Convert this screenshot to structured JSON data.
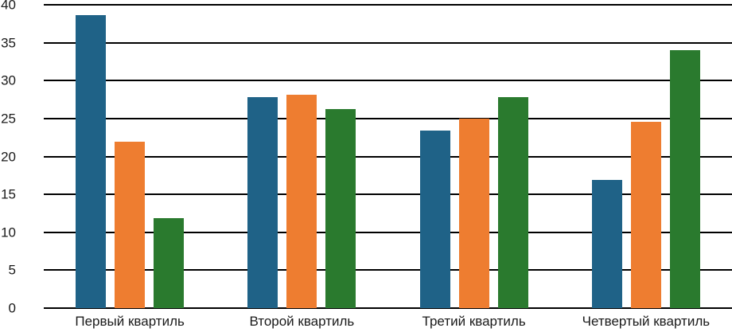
{
  "chart_data": {
    "type": "bar",
    "title": "",
    "xlabel": "",
    "ylabel": "",
    "categories": [
      "Первый квартиль",
      "Второй квартиль",
      "Третий квартиль",
      "Четвертый квартиль"
    ],
    "series": [
      {
        "color": "#1f6287",
        "values": [
          38.6,
          27.8,
          23.4,
          16.9
        ]
      },
      {
        "color": "#ee7d30",
        "values": [
          21.9,
          28.1,
          25.0,
          24.6
        ]
      },
      {
        "color": "#2a7a2e",
        "values": [
          11.9,
          26.3,
          27.8,
          34.0
        ]
      }
    ],
    "ylim": [
      0,
      40
    ],
    "yticks": [
      40,
      35,
      30,
      25,
      20,
      15,
      10,
      5,
      0
    ],
    "grid": "horizontal",
    "gridline_color": "#000000",
    "legend": "none",
    "background": "#ffffff",
    "text_color": "#1a1a1a"
  }
}
